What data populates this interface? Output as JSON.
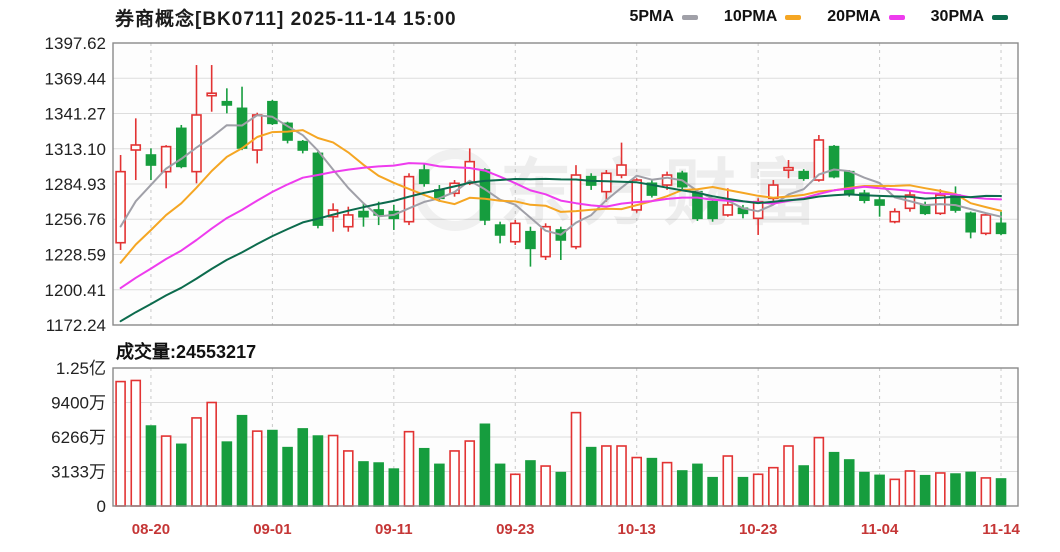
{
  "header": {
    "title": "券商概念[BK0711] 2025-11-14 15:00",
    "legend": [
      {
        "label": "5PMA",
        "color": "#a0a0a8"
      },
      {
        "label": "10PMA",
        "color": "#f5a623"
      },
      {
        "label": "20PMA",
        "color": "#ee3cee"
      },
      {
        "label": "30PMA",
        "color": "#0c6b4d"
      }
    ]
  },
  "watermark": "东方财富",
  "volume_header": {
    "label": "成交量:",
    "value": "24553217"
  },
  "chart_data": {
    "type": "candlestick+volume",
    "legend_position": "top-right",
    "grid": true,
    "colors": {
      "up": "#e23333",
      "down": "#169d3e",
      "axis_date": "#c53636",
      "axis_price": "#222222",
      "grid_line": "#dddddd",
      "border": "#8a8a8a"
    },
    "price_axis": {
      "min": 1172.24,
      "max": 1397.62,
      "tick_labels": [
        "1397.62",
        "1369.44",
        "1341.27",
        "1313.10",
        "1284.93",
        "1256.76",
        "1228.59",
        "1200.41",
        "1172.24"
      ],
      "tick_values": [
        1397.62,
        1369.44,
        1341.27,
        1313.1,
        1284.93,
        1256.76,
        1228.59,
        1200.41,
        1172.24
      ]
    },
    "volume_axis": {
      "max": 125330000,
      "ticks": [
        {
          "value": 125330000,
          "label": "1.25亿"
        },
        {
          "value": 94000000,
          "label": "9400万"
        },
        {
          "value": 62660000,
          "label": "6266万"
        },
        {
          "value": 31330000,
          "label": "3133万"
        },
        {
          "value": 0,
          "label": "0"
        }
      ]
    },
    "x_ticks": [
      {
        "index": 2,
        "label": "08-20"
      },
      {
        "index": 10,
        "label": "09-01"
      },
      {
        "index": 18,
        "label": "09-11"
      },
      {
        "index": 26,
        "label": "09-23"
      },
      {
        "index": 34,
        "label": "10-13"
      },
      {
        "index": 42,
        "label": "10-23"
      },
      {
        "index": 50,
        "label": "11-04"
      },
      {
        "index": 58,
        "label": "11-14"
      }
    ],
    "candles_format": [
      "date",
      "open",
      "high",
      "low",
      "close",
      "volume"
    ],
    "candles": [
      [
        "08-18",
        1238.0,
        1308.1,
        1232.2,
        1294.8,
        113000000
      ],
      [
        "08-19",
        1312.1,
        1337.4,
        1288.1,
        1316.1,
        114000000
      ],
      [
        "08-20",
        1308.1,
        1313.4,
        1288.1,
        1300.1,
        72600000
      ],
      [
        "08-21",
        1294.8,
        1316.0,
        1281.5,
        1314.8,
        63500000
      ],
      [
        "08-22",
        1329.4,
        1332.1,
        1297.5,
        1299.0,
        56000000
      ],
      [
        "08-25",
        1294.8,
        1380.0,
        1285.5,
        1340.1,
        80000000
      ],
      [
        "08-26",
        1355.5,
        1380.0,
        1342.7,
        1357.5,
        94000000
      ],
      [
        "08-27",
        1350.7,
        1361.4,
        1341.4,
        1348.1,
        58000000
      ],
      [
        "08-28",
        1345.4,
        1362.7,
        1312.0,
        1313.7,
        82000000
      ],
      [
        "08-29",
        1312.1,
        1341.9,
        1301.4,
        1340.1,
        68000000
      ],
      [
        "09-01",
        1350.7,
        1352.1,
        1332.1,
        1333.4,
        68500000
      ],
      [
        "09-02",
        1333.4,
        1334.7,
        1317.4,
        1320.1,
        53000000
      ],
      [
        "09-03",
        1318.8,
        1320.1,
        1309.4,
        1312.1,
        70000000
      ],
      [
        "09-04",
        1309.4,
        1310.8,
        1249.5,
        1252.1,
        63500000
      ],
      [
        "09-05",
        1258.8,
        1269.5,
        1246.8,
        1264.1,
        64000000
      ],
      [
        "09-08",
        1250.8,
        1266.8,
        1246.8,
        1260.2,
        50000000
      ],
      [
        "09-09",
        1262.9,
        1269.5,
        1250.8,
        1258.8,
        40000000
      ],
      [
        "09-10",
        1264.2,
        1270.8,
        1252.1,
        1260.2,
        39000000
      ],
      [
        "09-11",
        1262.9,
        1268.2,
        1248.2,
        1257.5,
        33500000
      ],
      [
        "09-12",
        1254.8,
        1293.5,
        1252.1,
        1290.8,
        67500000
      ],
      [
        "09-15",
        1296.1,
        1301.4,
        1282.8,
        1285.5,
        52000000
      ],
      [
        "09-16",
        1280.2,
        1284.1,
        1270.8,
        1273.5,
        37800000
      ],
      [
        "09-17",
        1277.5,
        1288.1,
        1274.8,
        1285.5,
        50000000
      ],
      [
        "09-18",
        1285.5,
        1313.4,
        1284.1,
        1302.8,
        59000000
      ],
      [
        "09-19",
        1296.1,
        1297.5,
        1252.1,
        1256.2,
        74200000
      ],
      [
        "09-22",
        1252.1,
        1254.8,
        1237.5,
        1244.2,
        37800000
      ],
      [
        "09-23",
        1238.8,
        1256.2,
        1236.2,
        1253.5,
        28800000
      ],
      [
        "09-24",
        1246.8,
        1250.8,
        1218.9,
        1233.5,
        40900000
      ],
      [
        "09-25",
        1226.9,
        1253.5,
        1224.2,
        1250.8,
        36300000
      ],
      [
        "09-26",
        1248.2,
        1250.8,
        1224.2,
        1240.2,
        30300000
      ],
      [
        "09-29",
        1234.8,
        1300.0,
        1232.8,
        1292.1,
        84800000
      ],
      [
        "09-30",
        1290.8,
        1293.5,
        1280.2,
        1284.1,
        53000000
      ],
      [
        "10-09",
        1278.8,
        1296.1,
        1270.8,
        1293.5,
        54500000
      ],
      [
        "10-10",
        1292.1,
        1318.0,
        1289.5,
        1300.1,
        54500000
      ],
      [
        "10-13",
        1264.2,
        1289.5,
        1262.0,
        1288.1,
        44000000
      ],
      [
        "10-14",
        1285.5,
        1288.1,
        1274.1,
        1276.1,
        43000000
      ],
      [
        "10-15",
        1284.1,
        1294.8,
        1280.2,
        1292.1,
        39400000
      ],
      [
        "10-16",
        1293.5,
        1295.5,
        1280.2,
        1282.8,
        31800000
      ],
      [
        "10-17",
        1278.8,
        1280.2,
        1255.4,
        1257.5,
        37800000
      ],
      [
        "10-20",
        1270.8,
        1272.1,
        1254.8,
        1257.5,
        25700000
      ],
      [
        "10-21",
        1260.2,
        1281.5,
        1258.8,
        1268.2,
        45400000
      ],
      [
        "10-22",
        1265.5,
        1268.2,
        1257.5,
        1261.5,
        25700000
      ],
      [
        "10-23",
        1257.5,
        1273.5,
        1244.2,
        1270.8,
        28800000
      ],
      [
        "10-24",
        1273.5,
        1288.1,
        1271.5,
        1284.1,
        34800000
      ],
      [
        "10-27",
        1296.0,
        1304.1,
        1289.5,
        1298.0,
        54500000
      ],
      [
        "10-28",
        1294.8,
        1296.8,
        1287.5,
        1289.5,
        36300000
      ],
      [
        "10-29",
        1288.1,
        1324.1,
        1286.8,
        1320.1,
        62100000
      ],
      [
        "10-30",
        1314.8,
        1316.1,
        1289.5,
        1290.8,
        48400000
      ],
      [
        "10-31",
        1294.8,
        1296.1,
        1274.8,
        1277.5,
        41800000
      ],
      [
        "11-03",
        1277.5,
        1280.2,
        1269.5,
        1272.0,
        30300000
      ],
      [
        "11-04",
        1272.1,
        1274.8,
        1258.8,
        1268.1,
        27800000
      ],
      [
        "11-05",
        1254.8,
        1265.5,
        1253.5,
        1262.8,
        24200000
      ],
      [
        "11-06",
        1265.5,
        1280.1,
        1262.8,
        1276.1,
        31800000
      ],
      [
        "11-07",
        1268.1,
        1270.8,
        1260.1,
        1261.5,
        27500000
      ],
      [
        "11-10",
        1261.5,
        1280.7,
        1260.2,
        1276.1,
        30000000
      ],
      [
        "11-11",
        1276.1,
        1283.0,
        1262.0,
        1264.1,
        29000000
      ],
      [
        "11-12",
        1261.5,
        1262.9,
        1241.5,
        1246.8,
        30500000
      ],
      [
        "11-13",
        1245.5,
        1262.0,
        1244.0,
        1260.2,
        25500000
      ],
      [
        "11-14",
        1253.5,
        1262.8,
        1244.0,
        1245.5,
        24553217
      ]
    ],
    "ma": {
      "ma5": [
        1251.0,
        1271.2,
        1284.2,
        1297.2,
        1305.0,
        1314.0,
        1322.3,
        1331.9,
        1331.7,
        1339.9,
        1338.6,
        1331.1,
        1323.9,
        1311.6,
        1296.4,
        1281.7,
        1269.5,
        1259.1,
        1260.2,
        1265.5,
        1270.6,
        1273.5,
        1278.6,
        1287.6,
        1280.7,
        1272.4,
        1268.4,
        1258.0,
        1247.6,
        1244.4,
        1254.0,
        1260.1,
        1272.1,
        1282.0,
        1291.6,
        1288.4,
        1290.0,
        1287.8,
        1279.3,
        1273.2,
        1271.6,
        1265.5,
        1263.1,
        1268.4,
        1276.5,
        1280.8,
        1292.5,
        1296.5,
        1295.2,
        1290.0,
        1285.7,
        1274.2,
        1271.3,
        1268.1,
        1268.9,
        1268.1,
        1264.9,
        1261.7,
        1258.8
      ],
      "ma10": [
        1222.0,
        1236.6,
        1248.1,
        1260.1,
        1269.5,
        1282.0,
        1295.3,
        1306.6,
        1313.5,
        1322.5,
        1326.4,
        1326.8,
        1328.0,
        1321.7,
        1318.2,
        1310.2,
        1300.3,
        1291.5,
        1285.9,
        1281.0,
        1276.2,
        1271.5,
        1268.9,
        1273.9,
        1273.1,
        1271.5,
        1271.0,
        1268.3,
        1267.6,
        1262.6,
        1263.3,
        1264.4,
        1265.2,
        1264.9,
        1268.1,
        1271.3,
        1275.2,
        1280.1,
        1280.8,
        1282.5,
        1280.1,
        1277.8,
        1275.5,
        1273.9,
        1274.9,
        1276.2,
        1279.0,
        1279.8,
        1281.8,
        1283.3,
        1283.3,
        1283.4,
        1283.9,
        1281.6,
        1279.4,
        1276.9,
        1269.6,
        1266.5,
        1263.5
      ],
      "ma20": [
        1201.7,
        1210.0,
        1217.3,
        1225.0,
        1231.7,
        1240.2,
        1249.3,
        1257.7,
        1264.2,
        1271.7,
        1278.6,
        1284.6,
        1290.0,
        1292.1,
        1294.5,
        1296.4,
        1297.9,
        1299.0,
        1299.6,
        1301.6,
        1301.2,
        1299.0,
        1298.3,
        1297.7,
        1295.6,
        1290.8,
        1285.6,
        1279.8,
        1276.7,
        1271.7,
        1269.6,
        1267.8,
        1266.9,
        1269.3,
        1270.5,
        1271.3,
        1273.0,
        1274.1,
        1274.1,
        1272.4,
        1271.6,
        1271.0,
        1270.2,
        1269.3,
        1271.4,
        1273.7,
        1277.0,
        1279.9,
        1281.2,
        1282.8,
        1281.6,
        1280.5,
        1279.6,
        1277.7,
        1277.1,
        1276.5,
        1274.2,
        1273.1,
        1272.6
      ],
      "ma30": [
        1175.3,
        1182.5,
        1189.0,
        1195.9,
        1202.0,
        1209.3,
        1217.1,
        1224.3,
        1230.3,
        1237.0,
        1243.3,
        1248.9,
        1254.2,
        1257.2,
        1260.5,
        1263.6,
        1266.4,
        1269.0,
        1271.4,
        1274.8,
        1277.8,
        1280.3,
        1283.0,
        1286.0,
        1287.4,
        1288.1,
        1288.9,
        1288.8,
        1289.0,
        1288.6,
        1288.5,
        1287.4,
        1287.2,
        1286.7,
        1286.3,
        1284.2,
        1282.0,
        1279.8,
        1277.9,
        1275.2,
        1273.0,
        1271.1,
        1269.7,
        1270.8,
        1271.9,
        1272.9,
        1274.9,
        1275.9,
        1276.6,
        1276.0,
        1275.4,
        1275.0,
        1274.7,
        1273.3,
        1274.0,
        1274.7,
        1274.5,
        1275.4,
        1275.3
      ]
    }
  }
}
